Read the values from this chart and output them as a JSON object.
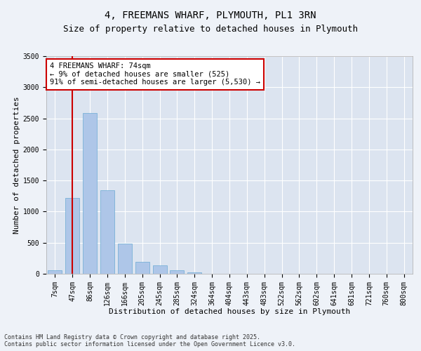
{
  "title": "4, FREEMANS WHARF, PLYMOUTH, PL1 3RN",
  "subtitle": "Size of property relative to detached houses in Plymouth",
  "xlabel": "Distribution of detached houses by size in Plymouth",
  "ylabel": "Number of detached properties",
  "categories": [
    "7sqm",
    "47sqm",
    "86sqm",
    "126sqm",
    "166sqm",
    "205sqm",
    "245sqm",
    "285sqm",
    "324sqm",
    "364sqm",
    "404sqm",
    "443sqm",
    "483sqm",
    "522sqm",
    "562sqm",
    "602sqm",
    "641sqm",
    "681sqm",
    "721sqm",
    "760sqm",
    "800sqm"
  ],
  "values": [
    60,
    1220,
    2580,
    1340,
    490,
    195,
    130,
    60,
    25,
    5,
    5,
    5,
    0,
    0,
    0,
    0,
    0,
    0,
    0,
    0,
    0
  ],
  "bar_color": "#aec6e8",
  "bar_edge_color": "#6aaad4",
  "bar_width": 0.8,
  "vline_x": 1,
  "vline_color": "#cc0000",
  "annotation_text": "4 FREEMANS WHARF: 74sqm\n← 9% of detached houses are smaller (525)\n91% of semi-detached houses are larger (5,530) →",
  "annotation_box_color": "#ffffff",
  "annotation_box_edge": "#cc0000",
  "ylim": [
    0,
    3500
  ],
  "yticks": [
    0,
    500,
    1000,
    1500,
    2000,
    2500,
    3000,
    3500
  ],
  "background_color": "#eef2f8",
  "plot_bg_color": "#dce4f0",
  "grid_color": "#ffffff",
  "footnote": "Contains HM Land Registry data © Crown copyright and database right 2025.\nContains public sector information licensed under the Open Government Licence v3.0.",
  "title_fontsize": 10,
  "subtitle_fontsize": 9,
  "xlabel_fontsize": 8,
  "ylabel_fontsize": 8,
  "tick_fontsize": 7,
  "annot_fontsize": 7.5,
  "footnote_fontsize": 6
}
